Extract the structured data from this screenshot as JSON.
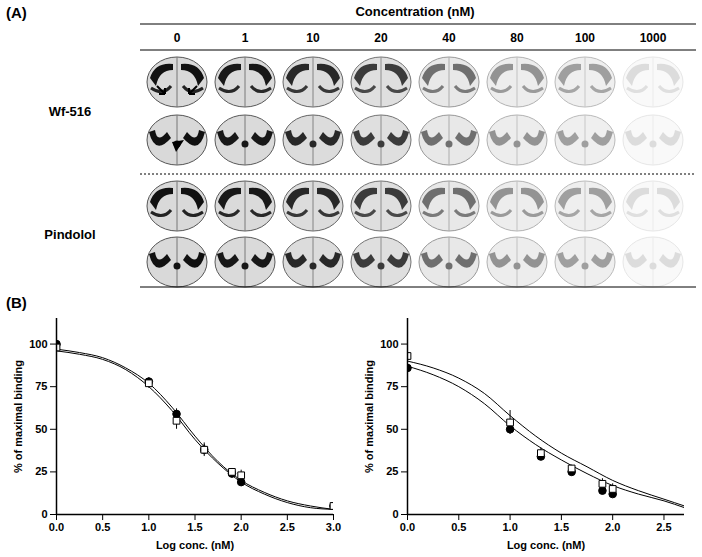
{
  "figure": {
    "panel_a": {
      "label": "(A)",
      "header": "Concentration (nM)",
      "concentrations": [
        0,
        1,
        10,
        20,
        40,
        80,
        100,
        1000
      ],
      "rows": [
        "Wf-516",
        "Pindolol"
      ]
    },
    "panel_b": {
      "label": "(B)"
    }
  },
  "chart_data": [
    {
      "type": "scatter",
      "x_label": "Log conc. (nM)",
      "y_label": "% of maximal binding",
      "xlim": [
        0,
        3
      ],
      "ylim": [
        0,
        115
      ],
      "xticks": [
        {
          "value": 0,
          "label": "0.0"
        },
        {
          "value": 0.5,
          "label": "0.5"
        },
        {
          "value": 1,
          "label": "1.0"
        },
        {
          "value": 1.5,
          "label": "1.5"
        },
        {
          "value": 2,
          "label": "2.0"
        },
        {
          "value": 2.5,
          "label": "2.5"
        },
        {
          "value": 3,
          "label": "3.0"
        }
      ],
      "yticks": [
        0,
        25,
        50,
        75,
        100
      ],
      "series": [
        {
          "type": "line",
          "color": "#000000",
          "x": [
            0,
            0.25,
            0.5,
            0.75,
            1,
            1.25,
            1.5,
            1.75,
            2,
            2.25,
            2.5,
            2.75,
            3
          ],
          "values": [
            97,
            95,
            92,
            86,
            77,
            63,
            46,
            31,
            20,
            13,
            8,
            5,
            3
          ]
        },
        {
          "type": "line",
          "color": "#000000",
          "x": [
            0,
            0.25,
            0.5,
            0.75,
            1,
            1.25,
            1.5,
            1.75,
            2,
            2.25,
            2.5,
            2.75,
            3
          ],
          "values": [
            96,
            94,
            91,
            85,
            75,
            61,
            44,
            30,
            19,
            12,
            7,
            4,
            3
          ]
        },
        {
          "type": "scatter",
          "marker": "circle",
          "color": "#000000",
          "x": [
            0,
            1,
            1.3,
            1.6,
            1.9,
            2,
            3
          ],
          "values": [
            100,
            78,
            59,
            38,
            24,
            19,
            5
          ],
          "errors": [
            3,
            2,
            3,
            4,
            2,
            2,
            1
          ]
        },
        {
          "type": "scatter",
          "marker": "open_square",
          "color": "#000000",
          "x": [
            0,
            1,
            1.3,
            1.6,
            1.9,
            2,
            3
          ],
          "values": [
            98,
            77,
            55,
            38,
            25,
            23,
            5
          ],
          "errors": [
            2,
            3,
            5,
            3,
            2,
            3,
            1
          ]
        }
      ]
    },
    {
      "type": "scatter",
      "x_label": "Log conc. (nM)",
      "y_label": "% of maximal binding",
      "xlim": [
        0,
        2.7
      ],
      "ylim": [
        0,
        115
      ],
      "xticks": [
        {
          "value": 0,
          "label": "0.0"
        },
        {
          "value": 0.5,
          "label": "0.5"
        },
        {
          "value": 1,
          "label": "1.0"
        },
        {
          "value": 1.5,
          "label": "1.5"
        },
        {
          "value": 2,
          "label": "2.0"
        },
        {
          "value": 2.5,
          "label": "2.5"
        }
      ],
      "yticks": [
        0,
        25,
        50,
        75,
        100
      ],
      "series": [
        {
          "type": "line",
          "color": "#000000",
          "x": [
            0,
            0.25,
            0.5,
            0.75,
            1,
            1.25,
            1.5,
            1.75,
            2,
            2.25,
            2.5,
            2.7
          ],
          "values": [
            90,
            86,
            80,
            71,
            58,
            46,
            36,
            28,
            20,
            14,
            9,
            5
          ]
        },
        {
          "type": "line",
          "color": "#000000",
          "x": [
            0,
            0.25,
            0.5,
            0.75,
            1,
            1.25,
            1.5,
            1.75,
            2,
            2.25,
            2.5,
            2.7
          ],
          "values": [
            87,
            82,
            75,
            65,
            52,
            41,
            32,
            24,
            17,
            12,
            8,
            4
          ]
        },
        {
          "type": "scatter",
          "marker": "circle",
          "color": "#000000",
          "x": [
            0,
            1,
            1.3,
            1.6,
            1.9,
            2
          ],
          "values": [
            86,
            50,
            34,
            25,
            14,
            12
          ],
          "errors": [
            4,
            2,
            2,
            2,
            2,
            1
          ]
        },
        {
          "type": "scatter",
          "marker": "open_square",
          "color": "#000000",
          "x": [
            0,
            1,
            1.3,
            1.6,
            1.9,
            2
          ],
          "values": [
            93,
            54,
            36,
            27,
            18,
            15
          ],
          "errors": [
            7,
            7,
            3,
            2,
            3,
            3
          ]
        }
      ]
    }
  ]
}
